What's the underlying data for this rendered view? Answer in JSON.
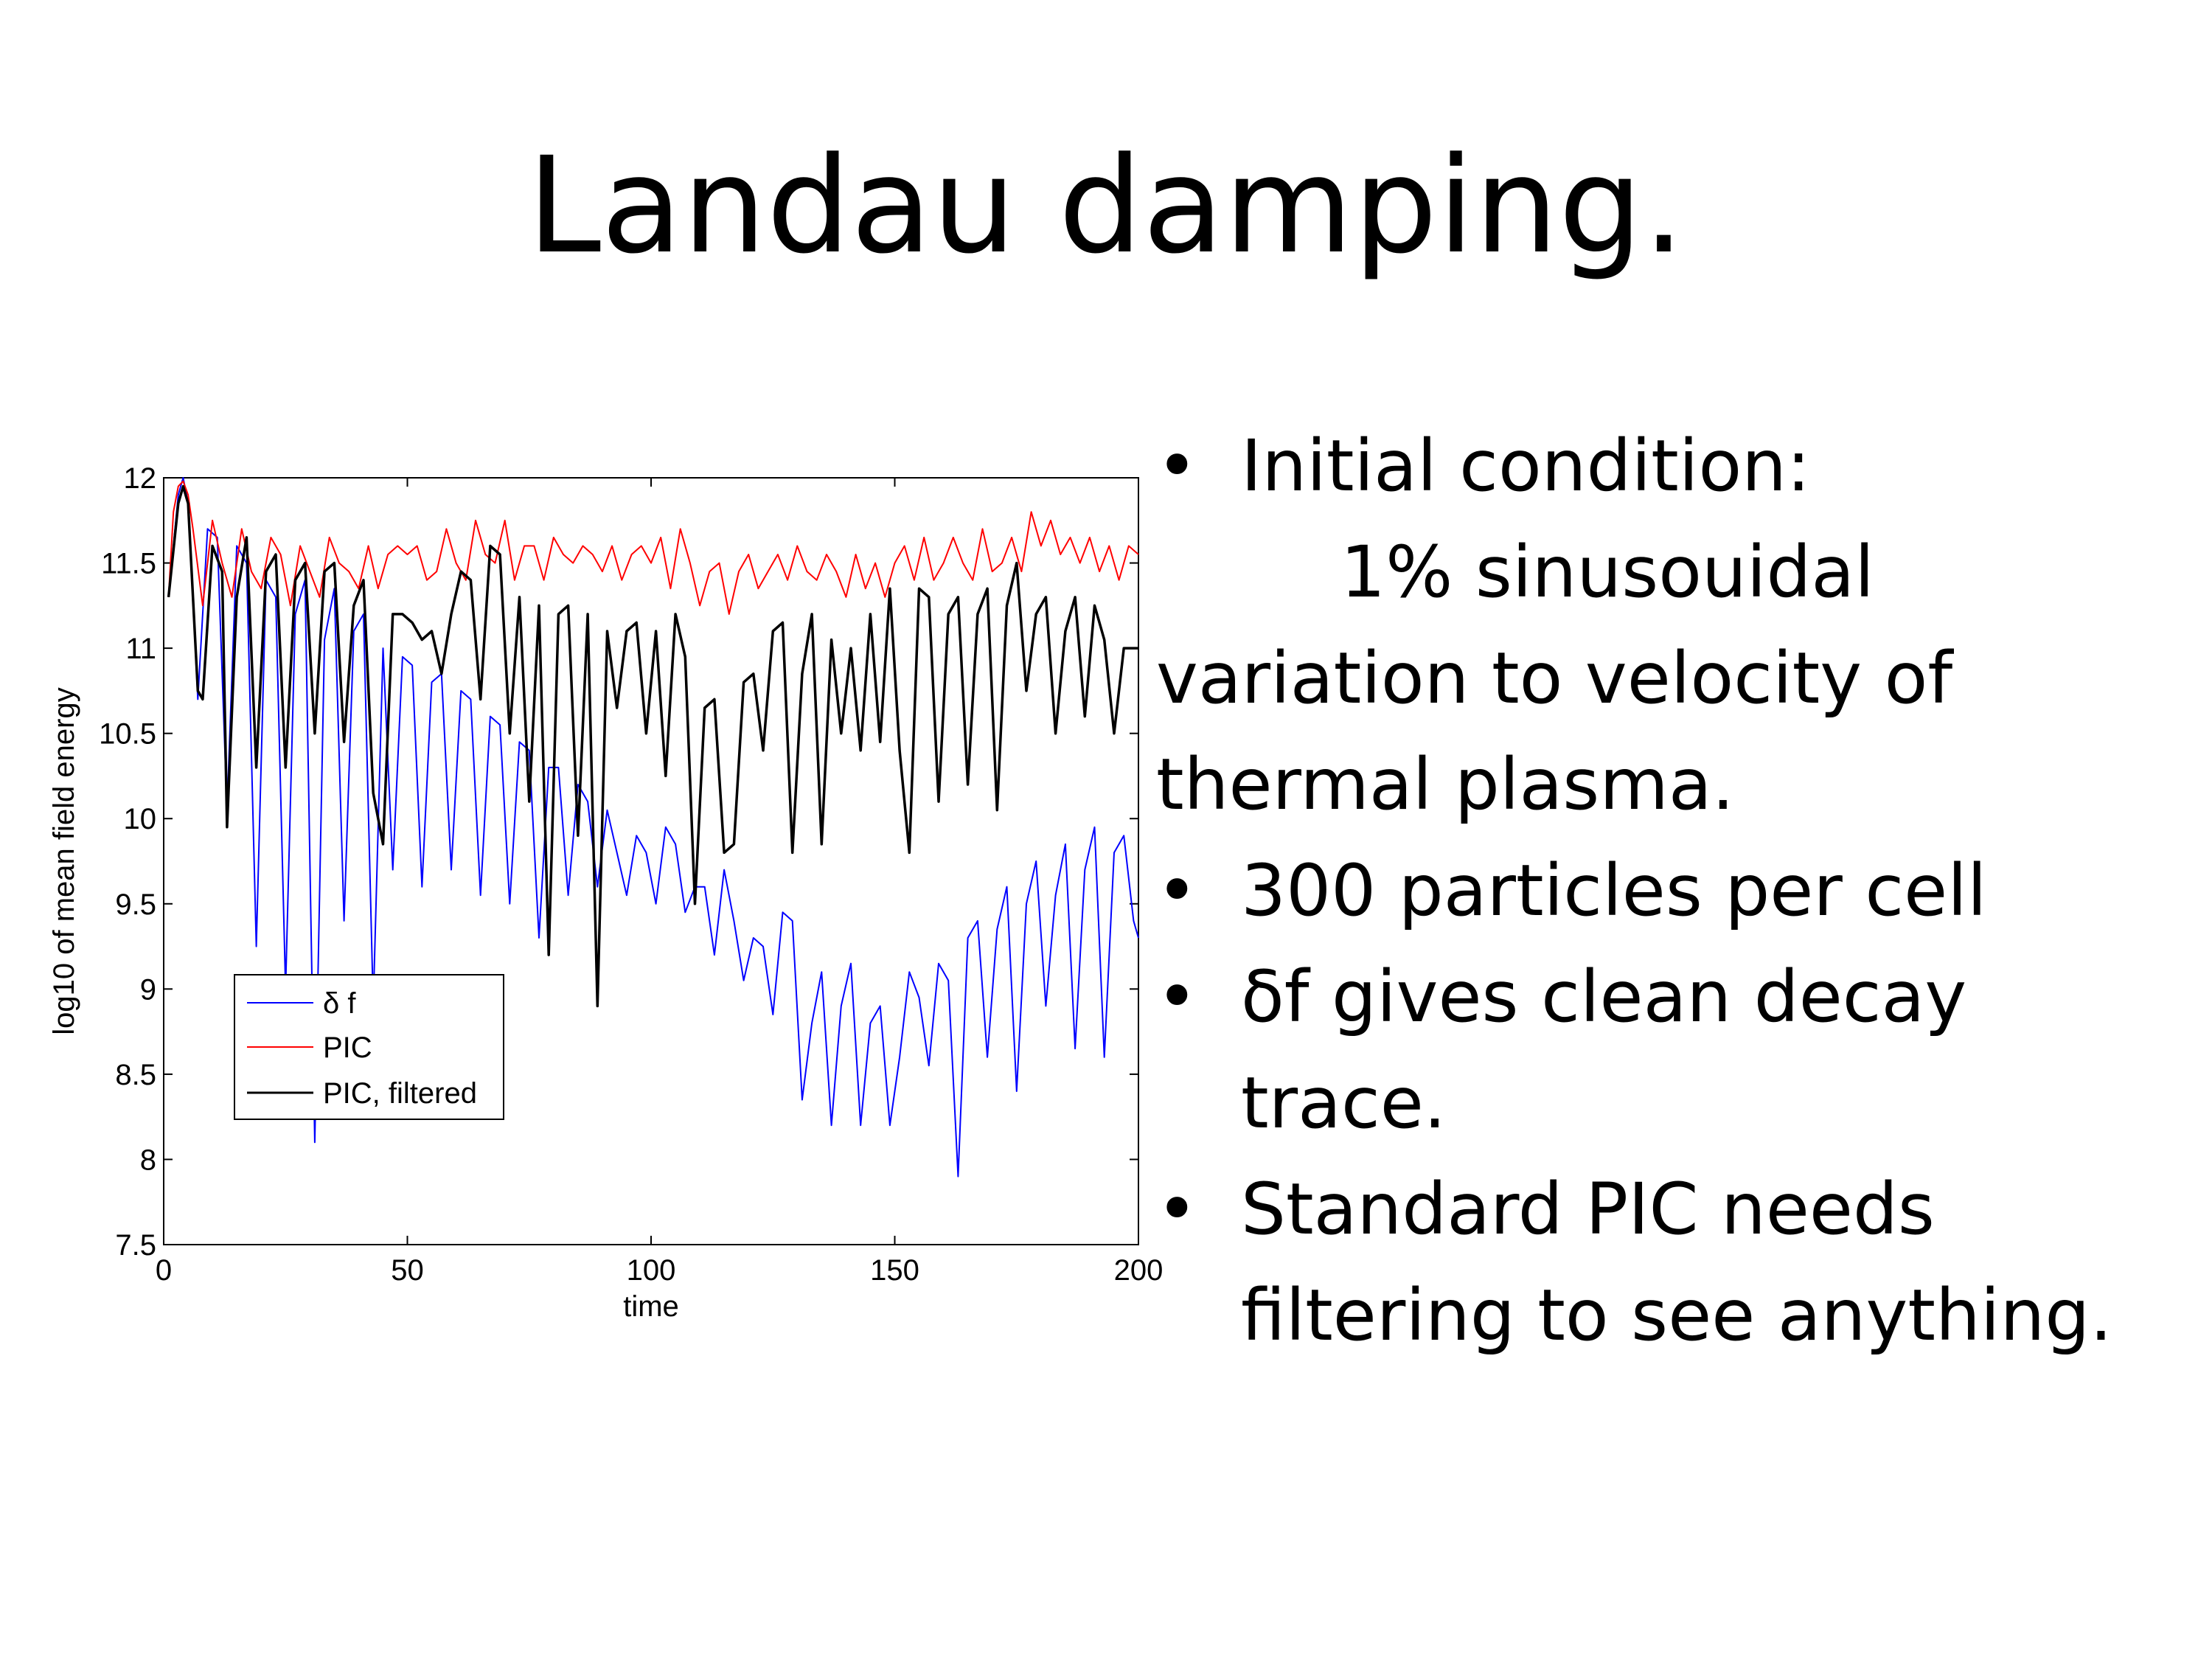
{
  "slide": {
    "title": "Landau damping."
  },
  "bullets": [
    {
      "marker": "•",
      "lines": [
        "Initial condition:"
      ],
      "sub": "1% sinusouidal",
      "cont": [
        "variation to velocity of",
        "thermal plasma."
      ]
    },
    {
      "marker": "•",
      "lines": [
        "300 particles per cell"
      ]
    },
    {
      "marker": "•",
      "lines": [
        "δf gives clean decay",
        "trace."
      ]
    },
    {
      "marker": "•",
      "lines": [
        "Standard PIC needs",
        "filtering to see anything."
      ]
    }
  ],
  "chart_data": {
    "type": "line",
    "title": "",
    "xlabel": "time",
    "ylabel": "log10 of mean field energy",
    "xlim": [
      0,
      200
    ],
    "ylim": [
      7.5,
      12
    ],
    "xticks": [
      "0",
      "50",
      "100",
      "150",
      "200"
    ],
    "yticks": [
      "7.5",
      "8",
      "8.5",
      "9",
      "9.5",
      "10",
      "10.5",
      "11",
      "11.5",
      "12"
    ],
    "grid": false,
    "legend_position": "lower-left",
    "series": [
      {
        "name": "δ f",
        "color": "#0000ff",
        "x": [
          1,
          3,
          4,
          5,
          7,
          9,
          11,
          13,
          15,
          17,
          19,
          21,
          23,
          25,
          27,
          29,
          31,
          33,
          35,
          37,
          39,
          41,
          43,
          45,
          47,
          49,
          51,
          53,
          55,
          57,
          59,
          61,
          63,
          65,
          67,
          69,
          71,
          73,
          75,
          77,
          79,
          81,
          83,
          85,
          87,
          89,
          91,
          93,
          95,
          97,
          99,
          101,
          103,
          105,
          107,
          109,
          111,
          113,
          115,
          117,
          119,
          121,
          123,
          125,
          127,
          129,
          131,
          133,
          135,
          137,
          139,
          141,
          143,
          145,
          147,
          149,
          151,
          153,
          155,
          157,
          159,
          161,
          163,
          165,
          167,
          169,
          171,
          173,
          175,
          177,
          179,
          181,
          183,
          185,
          187,
          189,
          191,
          193,
          195,
          197,
          199,
          200
        ],
        "y": [
          11.3,
          11.9,
          12.0,
          11.85,
          10.7,
          11.7,
          11.65,
          10.05,
          11.6,
          11.5,
          9.25,
          11.4,
          11.3,
          9.0,
          11.2,
          11.4,
          8.1,
          11.05,
          11.35,
          9.4,
          11.1,
          11.2,
          8.9,
          11.0,
          9.7,
          10.95,
          10.9,
          9.6,
          10.8,
          10.85,
          9.7,
          10.75,
          10.7,
          9.55,
          10.6,
          10.55,
          9.5,
          10.45,
          10.4,
          9.3,
          10.3,
          10.3,
          9.55,
          10.2,
          10.1,
          9.6,
          10.05,
          9.8,
          9.55,
          9.9,
          9.8,
          9.5,
          9.95,
          9.85,
          9.45,
          9.6,
          9.6,
          9.2,
          9.7,
          9.4,
          9.05,
          9.3,
          9.25,
          8.85,
          9.45,
          9.4,
          8.35,
          8.8,
          9.1,
          8.2,
          8.9,
          9.15,
          8.2,
          8.8,
          8.9,
          8.2,
          8.6,
          9.1,
          8.95,
          8.55,
          9.15,
          9.05,
          7.9,
          9.3,
          9.4,
          8.6,
          9.35,
          9.6,
          8.4,
          9.5,
          9.75,
          8.9,
          9.55,
          9.85,
          8.65,
          9.7,
          9.95,
          8.6,
          9.8,
          9.9,
          9.4,
          9.3
        ]
      },
      {
        "name": "PIC",
        "color": "#ff0000",
        "x": [
          1,
          2,
          3,
          4,
          5,
          6,
          8,
          10,
          12,
          14,
          16,
          18,
          20,
          22,
          24,
          26,
          28,
          30,
          32,
          34,
          36,
          38,
          40,
          42,
          44,
          46,
          48,
          50,
          52,
          54,
          56,
          58,
          60,
          62,
          64,
          66,
          68,
          70,
          72,
          74,
          76,
          78,
          80,
          82,
          84,
          86,
          88,
          90,
          92,
          94,
          96,
          98,
          100,
          102,
          104,
          106,
          108,
          110,
          112,
          114,
          116,
          118,
          120,
          122,
          124,
          126,
          128,
          130,
          132,
          134,
          136,
          138,
          140,
          142,
          144,
          146,
          148,
          150,
          152,
          154,
          156,
          158,
          160,
          162,
          164,
          166,
          168,
          170,
          172,
          174,
          176,
          178,
          180,
          182,
          184,
          186,
          188,
          190,
          192,
          194,
          196,
          198,
          200
        ],
        "y": [
          11.3,
          11.8,
          11.95,
          11.98,
          11.9,
          11.7,
          11.25,
          11.75,
          11.5,
          11.3,
          11.7,
          11.45,
          11.35,
          11.65,
          11.55,
          11.25,
          11.6,
          11.45,
          11.3,
          11.65,
          11.5,
          11.45,
          11.35,
          11.6,
          11.35,
          11.55,
          11.6,
          11.55,
          11.6,
          11.4,
          11.45,
          11.7,
          11.5,
          11.4,
          11.75,
          11.55,
          11.5,
          11.75,
          11.4,
          11.6,
          11.6,
          11.4,
          11.65,
          11.55,
          11.5,
          11.6,
          11.55,
          11.45,
          11.6,
          11.4,
          11.55,
          11.6,
          11.5,
          11.65,
          11.35,
          11.7,
          11.5,
          11.25,
          11.45,
          11.5,
          11.2,
          11.45,
          11.55,
          11.35,
          11.45,
          11.55,
          11.4,
          11.6,
          11.45,
          11.4,
          11.55,
          11.45,
          11.3,
          11.55,
          11.35,
          11.5,
          11.3,
          11.5,
          11.6,
          11.4,
          11.65,
          11.4,
          11.5,
          11.65,
          11.5,
          11.4,
          11.7,
          11.45,
          11.5,
          11.65,
          11.45,
          11.8,
          11.6,
          11.75,
          11.55,
          11.65,
          11.5,
          11.65,
          11.45,
          11.6,
          11.4,
          11.6,
          11.55
        ]
      },
      {
        "name": "PIC, filtered",
        "color": "#000000",
        "x": [
          1,
          3,
          4,
          5,
          7,
          8,
          10,
          12,
          13,
          15,
          17,
          19,
          21,
          23,
          25,
          27,
          29,
          31,
          33,
          35,
          37,
          39,
          41,
          43,
          45,
          47,
          49,
          51,
          53,
          55,
          57,
          59,
          61,
          63,
          65,
          67,
          69,
          71,
          73,
          75,
          77,
          79,
          81,
          83,
          85,
          87,
          89,
          91,
          93,
          95,
          97,
          99,
          101,
          103,
          105,
          107,
          109,
          111,
          113,
          115,
          117,
          119,
          121,
          123,
          125,
          127,
          129,
          131,
          133,
          135,
          137,
          139,
          141,
          143,
          145,
          147,
          149,
          151,
          153,
          155,
          157,
          159,
          161,
          163,
          165,
          167,
          169,
          171,
          173,
          175,
          177,
          179,
          181,
          183,
          185,
          187,
          189,
          191,
          193,
          195,
          197,
          199,
          200
        ],
        "y": [
          11.3,
          11.85,
          11.95,
          11.85,
          10.75,
          10.7,
          11.6,
          11.45,
          9.95,
          11.3,
          11.65,
          10.3,
          11.45,
          11.55,
          10.3,
          11.4,
          11.5,
          10.5,
          11.45,
          11.5,
          10.45,
          11.25,
          11.4,
          10.15,
          9.85,
          11.2,
          11.2,
          11.15,
          11.05,
          11.1,
          10.85,
          11.2,
          11.45,
          11.4,
          10.7,
          11.6,
          11.55,
          10.5,
          11.3,
          10.1,
          11.25,
          9.2,
          11.2,
          11.25,
          9.9,
          11.2,
          8.9,
          11.1,
          10.65,
          11.1,
          11.15,
          10.5,
          11.1,
          10.25,
          11.2,
          10.95,
          9.5,
          10.65,
          10.7,
          9.8,
          9.85,
          10.8,
          10.85,
          10.4,
          11.1,
          11.15,
          9.8,
          10.85,
          11.2,
          9.85,
          11.05,
          10.5,
          11.0,
          10.4,
          11.2,
          10.45,
          11.35,
          10.4,
          9.8,
          11.35,
          11.3,
          10.1,
          11.2,
          11.3,
          10.2,
          11.2,
          11.35,
          10.05,
          11.25,
          11.5,
          10.75,
          11.2,
          11.3,
          10.5,
          11.1,
          11.3,
          10.6,
          11.25,
          11.05,
          10.5,
          11.0,
          11.0,
          11.0
        ]
      }
    ]
  }
}
